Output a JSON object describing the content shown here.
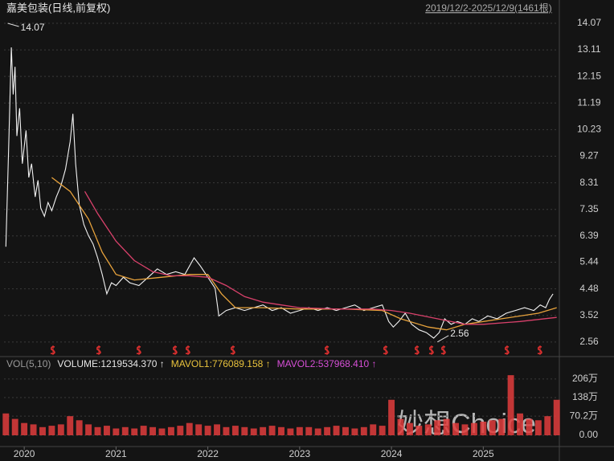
{
  "header": {
    "title": "嘉美包装(日线,前复权)",
    "range": "2019/12/2-2025/12/9(1461根)"
  },
  "watermark": "妙想Choice",
  "chart_data": [
    {
      "type": "line",
      "xlim": [
        2019.78,
        2025.82
      ],
      "ylim": [
        2.15,
        14.33
      ],
      "yticks": [
        14.07,
        13.11,
        12.15,
        11.19,
        10.23,
        9.27,
        8.31,
        7.35,
        6.39,
        5.44,
        4.48,
        3.52,
        2.56
      ],
      "grid": true,
      "series": [
        {
          "color": "#f2f2f2",
          "x": [
            2019.8,
            2019.83,
            2019.86,
            2019.88,
            2019.9,
            2019.92,
            2019.95,
            2019.98,
            2020.02,
            2020.05,
            2020.08,
            2020.12,
            2020.15,
            2020.18,
            2020.22,
            2020.26,
            2020.3,
            2020.35,
            2020.4,
            2020.45,
            2020.5,
            2020.53,
            2020.56,
            2020.6,
            2020.65,
            2020.7,
            2020.75,
            2020.8,
            2020.85,
            2020.9,
            2020.95,
            2021.0,
            2021.08,
            2021.15,
            2021.25,
            2021.35,
            2021.45,
            2021.55,
            2021.65,
            2021.75,
            2021.85,
            2021.92,
            2022.0,
            2022.08,
            2022.12,
            2022.2,
            2022.3,
            2022.4,
            2022.5,
            2022.6,
            2022.7,
            2022.8,
            2022.9,
            2023.0,
            2023.1,
            2023.2,
            2023.3,
            2023.4,
            2023.5,
            2023.6,
            2023.7,
            2023.8,
            2023.9,
            2023.97,
            2024.02,
            2024.08,
            2024.15,
            2024.22,
            2024.3,
            2024.38,
            2024.46,
            2024.52,
            2024.58,
            2024.65,
            2024.72,
            2024.8,
            2024.88,
            2024.95,
            2025.05,
            2025.15,
            2025.25,
            2025.35,
            2025.45,
            2025.55,
            2025.62,
            2025.68,
            2025.72,
            2025.76
          ],
          "values": [
            6.0,
            9.5,
            13.2,
            11.5,
            12.5,
            10.0,
            11.0,
            9.0,
            10.2,
            8.5,
            9.0,
            7.8,
            8.4,
            7.4,
            7.1,
            7.6,
            7.3,
            7.8,
            8.2,
            8.8,
            9.8,
            10.8,
            9.0,
            7.5,
            6.8,
            6.4,
            6.1,
            5.6,
            5.0,
            4.3,
            4.7,
            4.6,
            4.9,
            4.7,
            4.6,
            4.9,
            5.2,
            5.0,
            5.1,
            5.0,
            5.6,
            5.3,
            4.9,
            4.5,
            3.5,
            3.7,
            3.8,
            3.7,
            3.8,
            3.9,
            3.7,
            3.8,
            3.6,
            3.7,
            3.8,
            3.7,
            3.8,
            3.7,
            3.8,
            3.9,
            3.7,
            3.8,
            3.9,
            3.3,
            3.1,
            3.3,
            3.6,
            3.2,
            3.0,
            2.9,
            2.7,
            2.9,
            3.4,
            3.2,
            3.3,
            3.2,
            3.4,
            3.3,
            3.5,
            3.4,
            3.6,
            3.7,
            3.8,
            3.7,
            3.9,
            3.8,
            4.1,
            4.3
          ]
        },
        {
          "color": "#e8a33c",
          "x": [
            2020.3,
            2020.5,
            2020.7,
            2020.85,
            2021.0,
            2021.2,
            2021.5,
            2021.8,
            2022.0,
            2022.15,
            2022.3,
            2022.6,
            2023.0,
            2023.5,
            2023.9,
            2024.1,
            2024.4,
            2024.6,
            2024.8,
            2025.2,
            2025.6,
            2025.8
          ],
          "values": [
            8.5,
            8.0,
            7.0,
            5.8,
            5.0,
            4.8,
            4.9,
            5.0,
            5.0,
            4.3,
            3.8,
            3.8,
            3.75,
            3.75,
            3.7,
            3.4,
            3.1,
            3.0,
            3.2,
            3.4,
            3.6,
            3.8
          ]
        },
        {
          "color": "#d9416b",
          "x": [
            2020.66,
            2020.8,
            2021.0,
            2021.2,
            2021.4,
            2021.6,
            2021.8,
            2022.0,
            2022.2,
            2022.4,
            2022.6,
            2022.8,
            2023.0,
            2023.4,
            2023.8,
            2024.0,
            2024.2,
            2024.5,
            2024.8,
            2025.0,
            2025.4,
            2025.8
          ],
          "values": [
            8.0,
            7.2,
            6.2,
            5.5,
            5.1,
            4.95,
            4.95,
            4.9,
            4.6,
            4.2,
            4.0,
            3.9,
            3.8,
            3.75,
            3.75,
            3.7,
            3.6,
            3.4,
            3.2,
            3.2,
            3.3,
            3.45
          ]
        }
      ],
      "annotations": [
        {
          "label": "14.07",
          "x": 2019.82,
          "value": 14.07
        },
        {
          "label": "2.56",
          "x": 2024.5,
          "value": 2.56
        }
      ]
    },
    {
      "type": "bar",
      "legend": [
        "VOL(5,10)",
        "VOLUME:1219534.370 ↑",
        "MAVOL1:776089.158 ↑",
        "MAVOL2:537968.410 ↑"
      ],
      "legend_colors": [
        "#9a9a9a",
        "#e6e6e6",
        "#e8c23c",
        "#d64fd6"
      ],
      "xlim": [
        2019.78,
        2025.82
      ],
      "ylim": [
        0,
        241
      ],
      "xticks": [
        2020,
        2021,
        2022,
        2023,
        2024,
        2025
      ],
      "yticks": [
        {
          "value": 206,
          "label": "206万"
        },
        {
          "value": 138,
          "label": "138万"
        },
        {
          "value": 70.2,
          "label": "70.2万"
        },
        {
          "value": 0,
          "label": "0.00"
        }
      ],
      "color": "#e03c3c",
      "x": [
        2019.8,
        2019.9,
        2020.0,
        2020.1,
        2020.2,
        2020.3,
        2020.4,
        2020.5,
        2020.6,
        2020.7,
        2020.8,
        2020.9,
        2021.0,
        2021.1,
        2021.2,
        2021.3,
        2021.4,
        2021.5,
        2021.6,
        2021.7,
        2021.8,
        2021.9,
        2022.0,
        2022.1,
        2022.2,
        2022.3,
        2022.4,
        2022.5,
        2022.6,
        2022.7,
        2022.8,
        2022.9,
        2023.0,
        2023.1,
        2023.2,
        2023.3,
        2023.4,
        2023.5,
        2023.6,
        2023.7,
        2023.8,
        2023.9,
        2024.0,
        2024.1,
        2024.2,
        2024.3,
        2024.4,
        2024.5,
        2024.6,
        2024.7,
        2024.8,
        2024.9,
        2025.0,
        2025.1,
        2025.2,
        2025.3,
        2025.4,
        2025.5,
        2025.6,
        2025.7,
        2025.8
      ],
      "values": [
        80,
        60,
        45,
        40,
        30,
        35,
        40,
        70,
        55,
        40,
        30,
        35,
        25,
        30,
        25,
        35,
        30,
        25,
        30,
        35,
        45,
        40,
        35,
        40,
        30,
        35,
        30,
        25,
        30,
        35,
        30,
        25,
        30,
        30,
        25,
        30,
        35,
        30,
        25,
        30,
        40,
        35,
        130,
        60,
        45,
        35,
        40,
        55,
        60,
        45,
        40,
        45,
        50,
        55,
        60,
        220,
        80,
        60,
        55,
        70,
        130
      ]
    }
  ]
}
